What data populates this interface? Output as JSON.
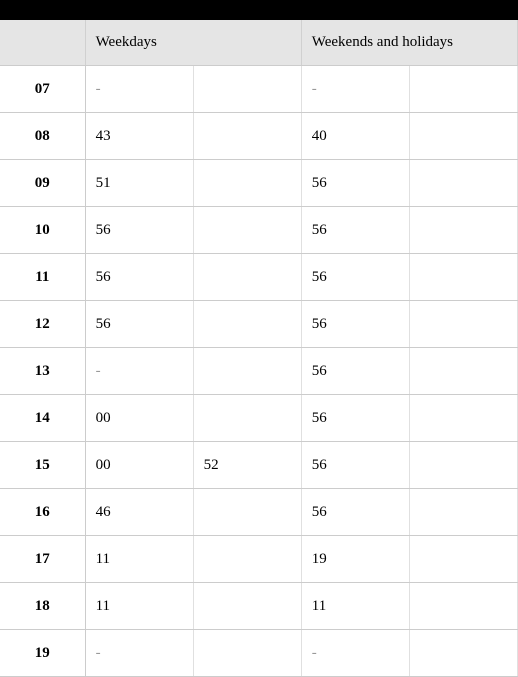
{
  "timetable": {
    "headers": {
      "weekdays": "Weekdays",
      "weekends": "Weekends and holidays"
    },
    "columns": [
      "hour",
      "wd1",
      "wd2",
      "we1",
      "we2"
    ],
    "colors": {
      "header_bg": "#e5e5e5",
      "border": "#cccccc",
      "cell_border": "#e0e0e0",
      "black_bar": "#000000",
      "bg": "#ffffff"
    },
    "rows": [
      {
        "hour": "07",
        "wd1": "-",
        "wd2": "",
        "we1": "-",
        "we2": ""
      },
      {
        "hour": "08",
        "wd1": "43",
        "wd2": "",
        "we1": "40",
        "we2": ""
      },
      {
        "hour": "09",
        "wd1": "51",
        "wd2": "",
        "we1": "56",
        "we2": ""
      },
      {
        "hour": "10",
        "wd1": "56",
        "wd2": "",
        "we1": "56",
        "we2": ""
      },
      {
        "hour": "11",
        "wd1": "56",
        "wd2": "",
        "we1": "56",
        "we2": ""
      },
      {
        "hour": "12",
        "wd1": "56",
        "wd2": "",
        "we1": "56",
        "we2": ""
      },
      {
        "hour": "13",
        "wd1": "-",
        "wd2": "",
        "we1": "56",
        "we2": ""
      },
      {
        "hour": "14",
        "wd1": "00",
        "wd2": "",
        "we1": "56",
        "we2": ""
      },
      {
        "hour": "15",
        "wd1": "00",
        "wd2": "52",
        "we1": "56",
        "we2": ""
      },
      {
        "hour": "16",
        "wd1": "46",
        "wd2": "",
        "we1": "56",
        "we2": ""
      },
      {
        "hour": "17",
        "wd1": "11",
        "wd2": "",
        "we1": "19",
        "we2": ""
      },
      {
        "hour": "18",
        "wd1": "11",
        "wd2": "",
        "we1": "11",
        "we2": ""
      },
      {
        "hour": "19",
        "wd1": "-",
        "wd2": "",
        "we1": "-",
        "we2": ""
      }
    ]
  }
}
